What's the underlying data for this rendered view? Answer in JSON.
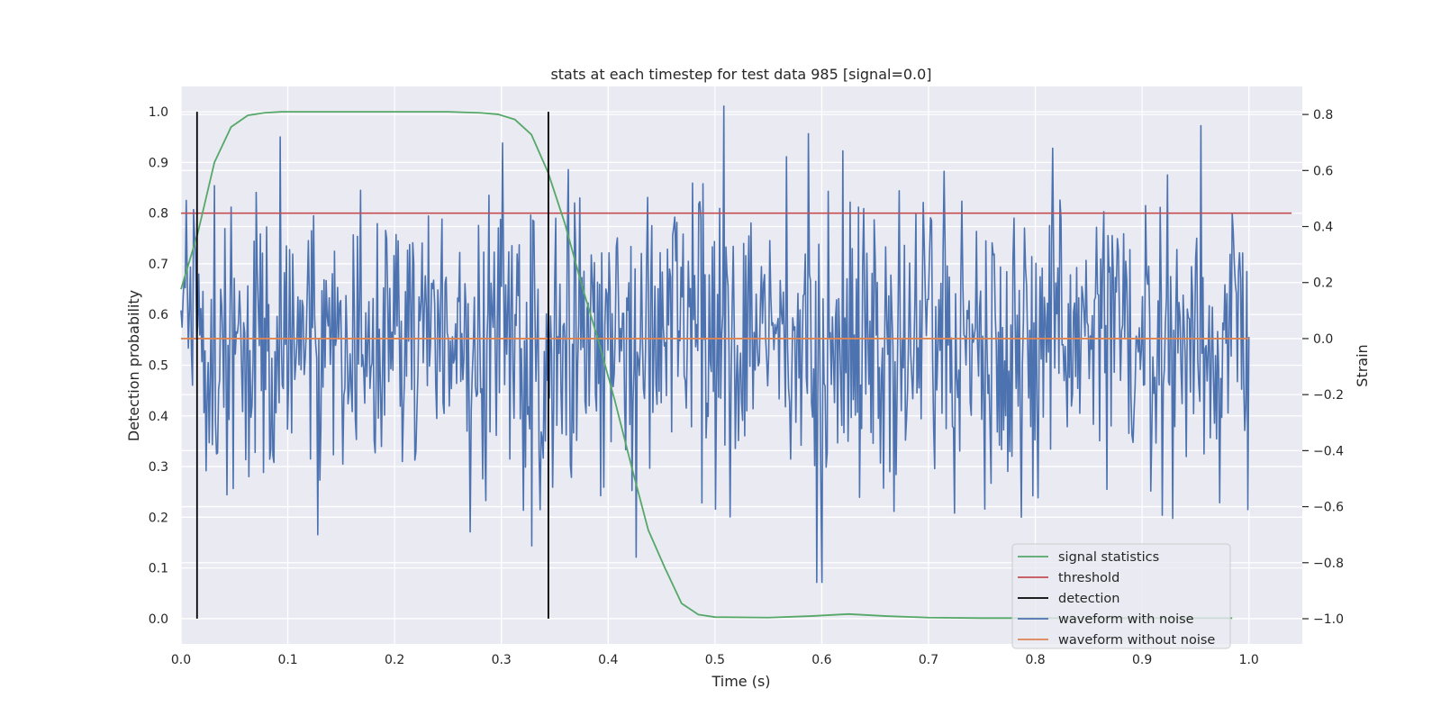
{
  "chart_data": {
    "type": "line",
    "title": "stats at each timestep for test data 985 [signal=0.0]",
    "xlabel": "Time (s)",
    "ylabel_left": "Detection probability",
    "ylabel_right": "Strain",
    "xlim": [
      0.0,
      1.05
    ],
    "ylim_left": [
      -0.05,
      1.05
    ],
    "ylim_right": [
      -1.09,
      0.9
    ],
    "x_ticks": [
      0.0,
      0.1,
      0.2,
      0.3,
      0.4,
      0.5,
      0.6,
      0.7,
      0.8,
      0.9,
      1.0
    ],
    "x_tick_labels": [
      "0.0",
      "0.1",
      "0.2",
      "0.3",
      "0.4",
      "0.5",
      "0.6",
      "0.7",
      "0.8",
      "0.9",
      "1.0"
    ],
    "y_left_ticks": [
      0.0,
      0.1,
      0.2,
      0.3,
      0.4,
      0.5,
      0.6,
      0.7,
      0.8,
      0.9,
      1.0
    ],
    "y_left_tick_labels": [
      "0.0",
      "0.1",
      "0.2",
      "0.3",
      "0.4",
      "0.5",
      "0.6",
      "0.7",
      "0.8",
      "0.9",
      "1.0"
    ],
    "y_right_ticks": [
      -1.0,
      -0.8,
      -0.6,
      -0.4,
      -0.2,
      0.0,
      0.2,
      0.4,
      0.6,
      0.8
    ],
    "y_right_tick_labels": [
      "−1.0",
      "−0.8",
      "−0.6",
      "−0.4",
      "−0.2",
      "0.0",
      "0.2",
      "0.4",
      "0.6",
      "0.8"
    ],
    "grid": true,
    "legend_position": "bottom-right",
    "series": [
      {
        "name": "signal statistics",
        "axis": "left",
        "color": "#55a868",
        "x": [
          0.0,
          0.015625,
          0.03125,
          0.046875,
          0.0625,
          0.078125,
          0.09375,
          0.15,
          0.2,
          0.25,
          0.28,
          0.296875,
          0.3125,
          0.328125,
          0.34375,
          0.359375,
          0.375,
          0.390625,
          0.40625,
          0.421875,
          0.4375,
          0.453125,
          0.46875,
          0.484375,
          0.5,
          0.55,
          0.59,
          0.625,
          0.66,
          0.7,
          0.75,
          0.8,
          0.85,
          0.9,
          0.95,
          0.984375
        ],
        "y": [
          0.65,
          0.76,
          0.9,
          0.97,
          0.993,
          0.998,
          1.0,
          1.0,
          1.0,
          1.0,
          0.998,
          0.995,
          0.985,
          0.955,
          0.88,
          0.78,
          0.66,
          0.55,
          0.43,
          0.3,
          0.175,
          0.1,
          0.03,
          0.008,
          0.003,
          0.002,
          0.005,
          0.009,
          0.005,
          0.002,
          0.001,
          0.001,
          0.001,
          0.001,
          0.001,
          0.001
        ]
      },
      {
        "name": "threshold",
        "axis": "left",
        "color": "#c44e52",
        "x": [
          0.0,
          1.04
        ],
        "y": [
          0.8,
          0.8
        ]
      },
      {
        "name": "detection",
        "axis": "left",
        "color": "#000000",
        "lines": [
          {
            "x": 0.015,
            "y": [
              0.0,
              1.0
            ]
          },
          {
            "x": 0.344,
            "y": [
              0.0,
              1.0
            ]
          }
        ]
      },
      {
        "name": "waveform with noise",
        "axis": "right",
        "color": "#4c72b0",
        "x_range": [
          0.0,
          1.0
        ],
        "n_points": 1024,
        "value_range": [
          -0.88,
          0.83
        ],
        "sample_points": [
          {
            "x": 0.093,
            "y": 0.72
          },
          {
            "x": 0.128,
            "y": -0.7
          },
          {
            "x": 0.328,
            "y": -0.74
          },
          {
            "x": 0.426,
            "y": -0.78
          },
          {
            "x": 0.508,
            "y": 0.83
          },
          {
            "x": 0.595,
            "y": -0.87
          },
          {
            "x": 0.6,
            "y": -0.87
          },
          {
            "x": 0.62,
            "y": 0.67
          },
          {
            "x": 0.955,
            "y": 0.76
          }
        ]
      },
      {
        "name": "waveform without noise",
        "axis": "right",
        "color": "#dd8452",
        "x": [
          0.0,
          1.0
        ],
        "y": [
          0.0,
          0.0
        ]
      }
    ]
  }
}
